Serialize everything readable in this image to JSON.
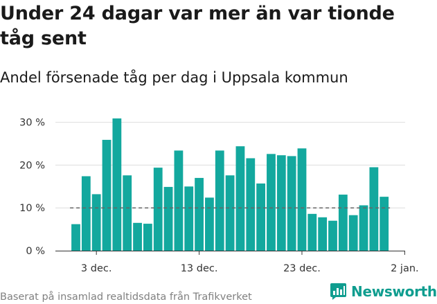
{
  "title": "Under 24 dagar var mer än var tionde tåg sent",
  "subtitle": "Andel försenade tåg per dag i Uppsala kommun",
  "footer": "Baserat på insamlad realtidsdata från Trafikverket",
  "brand": "Newsworthy",
  "colors": {
    "bar": "#13a89e",
    "brand": "#0f9d8f",
    "grid": "#dddddd",
    "reference": "#666666"
  },
  "chart_data": {
    "type": "bar",
    "y_unit": "%",
    "ylim": [
      0,
      32
    ],
    "yticks": [
      0,
      10,
      20,
      30
    ],
    "ytick_labels": [
      "0 %",
      "10 %",
      "20 %",
      "30 %"
    ],
    "xticks": [
      {
        "index": 2,
        "label": "3 dec."
      },
      {
        "index": 12,
        "label": "13 dec."
      },
      {
        "index": 22,
        "label": "23 dec."
      },
      {
        "index": 32,
        "label": "2 jan."
      }
    ],
    "x_start": "1 dec.",
    "values": [
      6.2,
      17.4,
      13.2,
      25.9,
      30.9,
      17.6,
      6.5,
      6.3,
      19.4,
      14.9,
      23.4,
      15.0,
      17.0,
      12.4,
      23.4,
      17.6,
      24.4,
      21.6,
      15.7,
      22.6,
      22.3,
      22.1,
      23.9,
      8.6,
      7.8,
      7.0,
      13.1,
      8.3,
      10.6,
      19.5,
      12.6
    ],
    "reference_line": 10,
    "grid": true,
    "legend": "none"
  }
}
